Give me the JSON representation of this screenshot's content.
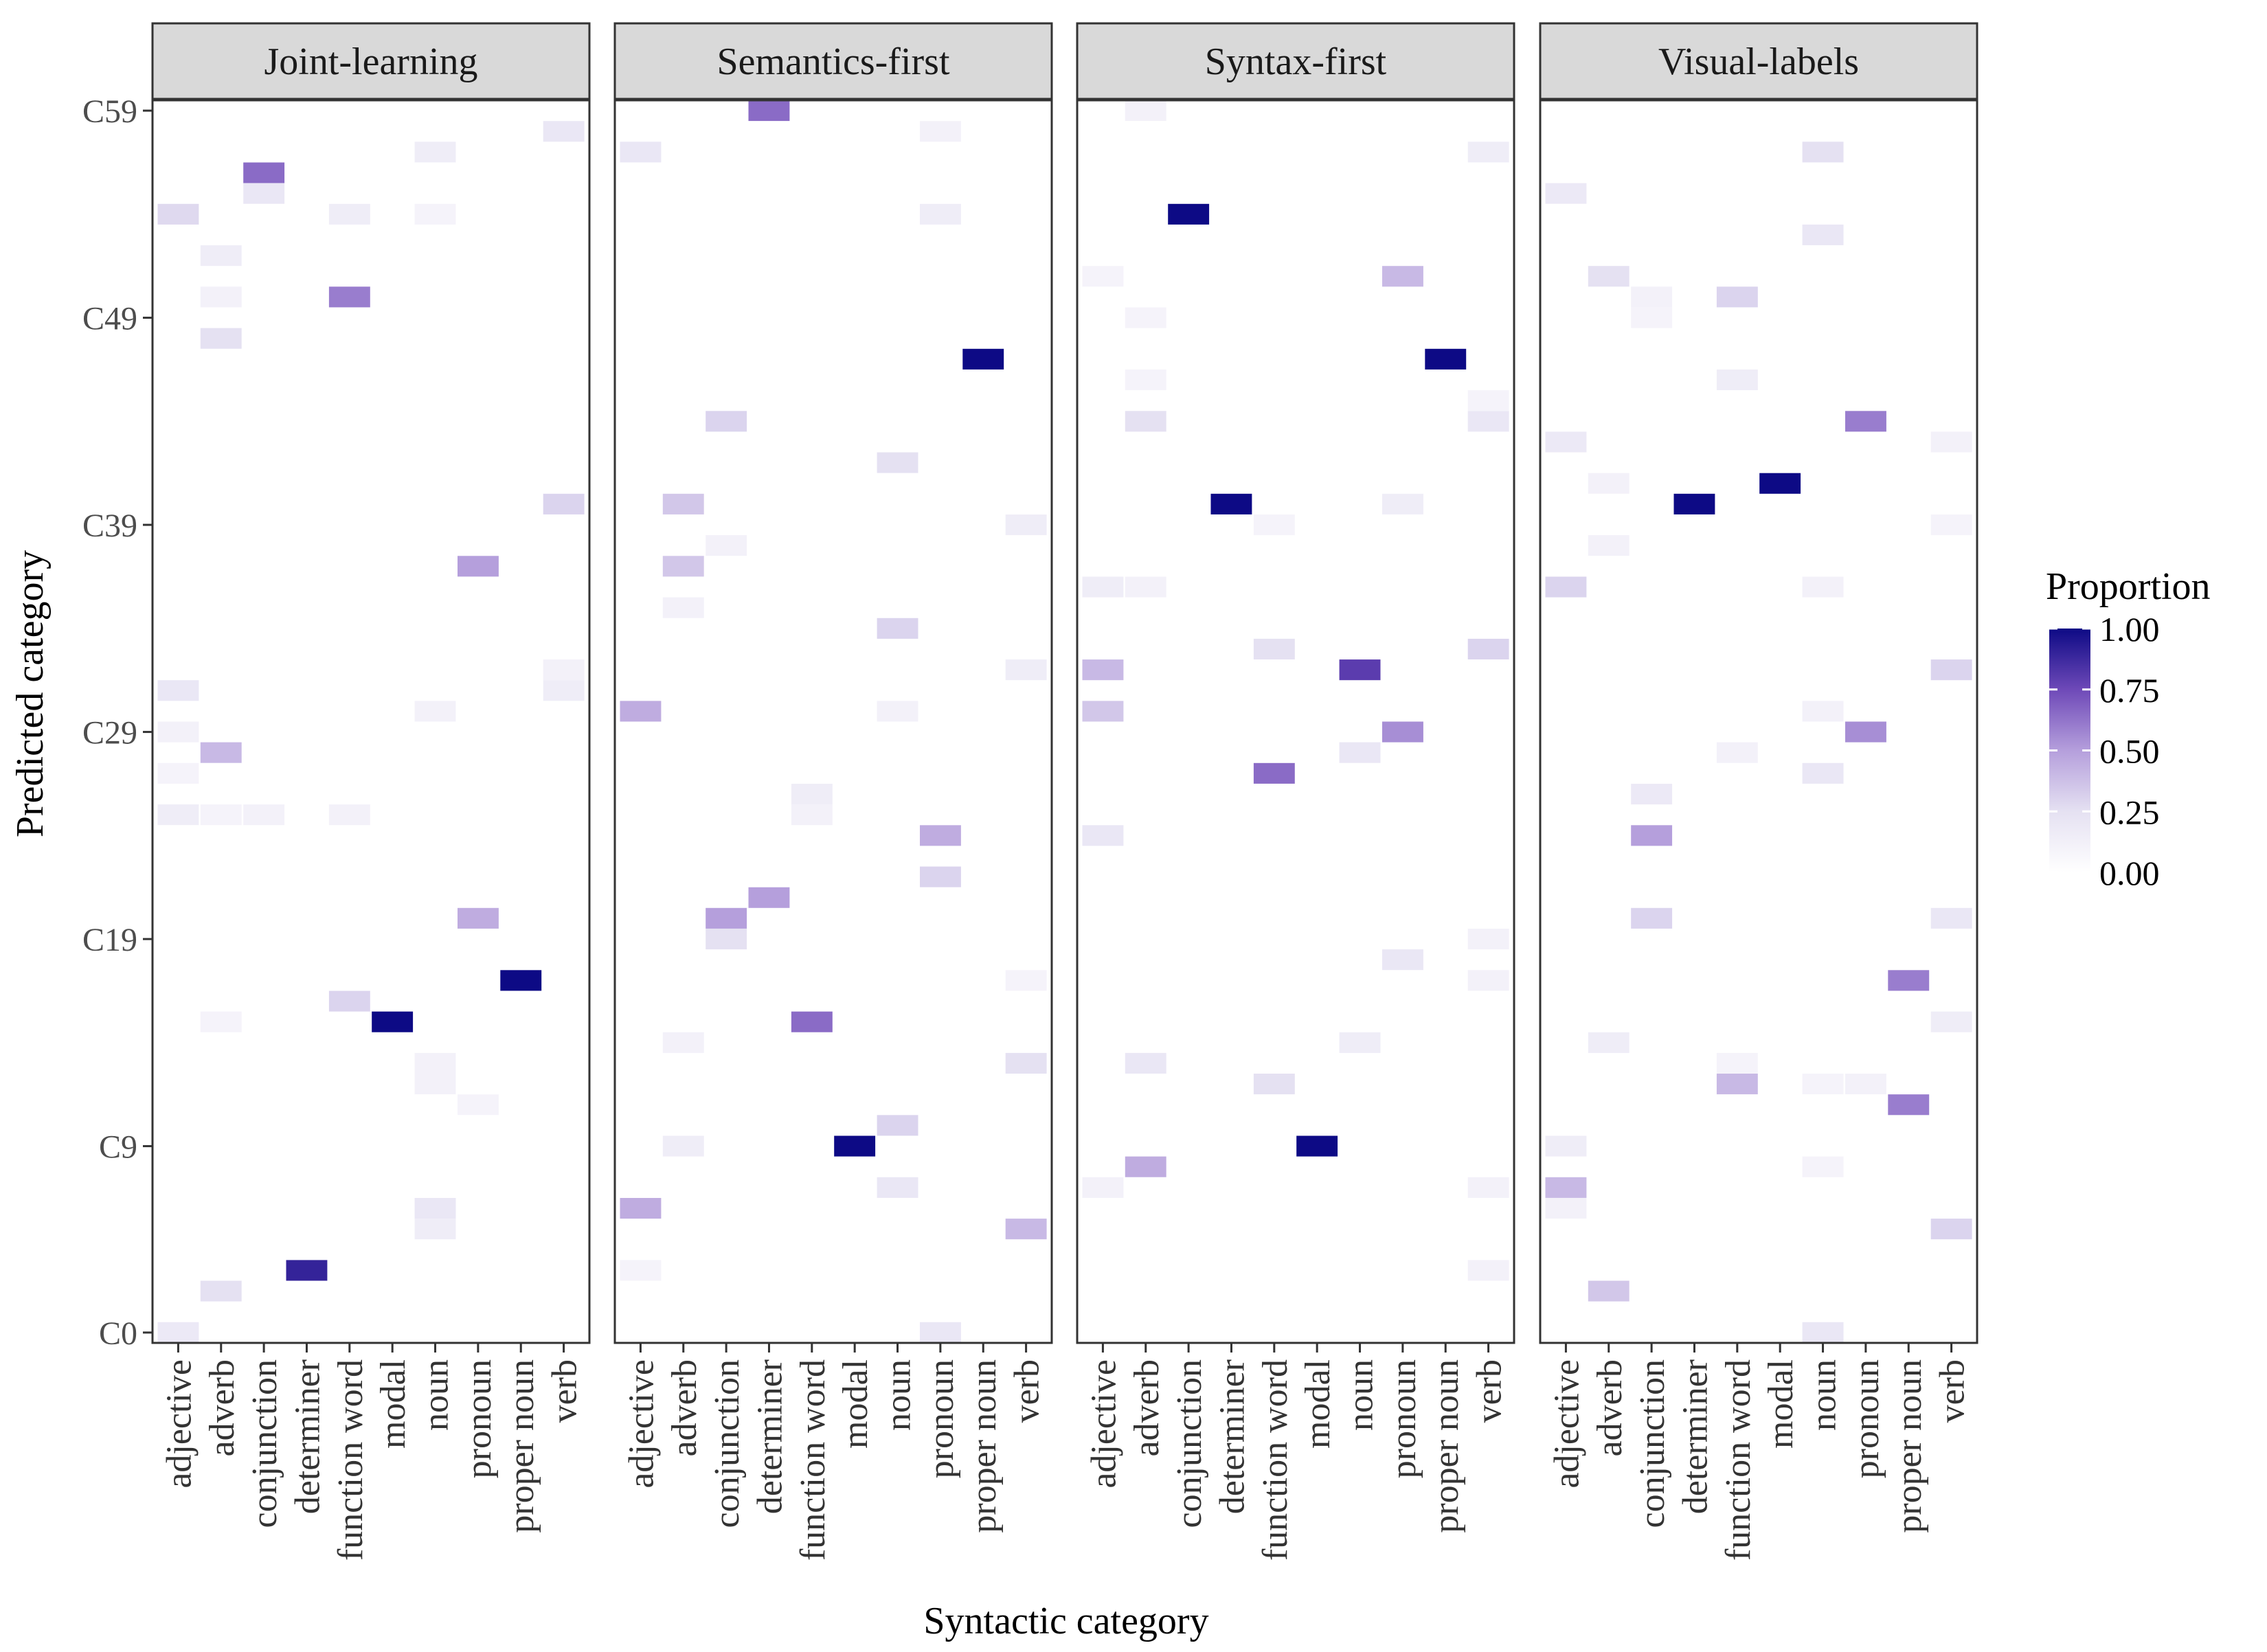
{
  "chart_data": {
    "type": "heatmap",
    "title": "",
    "xlabel": "Syntactic category",
    "ylabel": "Predicted category",
    "x_categories": [
      "adjective",
      "adverb",
      "conjunction",
      "determiner",
      "function word",
      "modal",
      "noun",
      "pronoun",
      "proper noun",
      "verb"
    ],
    "y_range": [
      0,
      59
    ],
    "y_tick_labels": [
      "C0",
      "C9",
      "C19",
      "C29",
      "C39",
      "C49",
      "C59"
    ],
    "y_tick_values": [
      0,
      9,
      19,
      29,
      39,
      49,
      59
    ],
    "legend": {
      "title": "Proportion",
      "placement": "right",
      "ticks": [
        "0.00",
        "0.25",
        "0.50",
        "0.75",
        "1.00"
      ],
      "tick_values": [
        0,
        0.25,
        0.5,
        0.75,
        1
      ],
      "color_low": "#ffffff",
      "color_high": "#0d0a85"
    },
    "grid": false,
    "panels": [
      {
        "name": "Joint-learning",
        "cells": [
          [
            "proper noun",
            17,
            1.0
          ],
          [
            "modal",
            15,
            1.0
          ],
          [
            "determiner",
            3,
            0.9
          ],
          [
            "conjunction",
            56,
            0.65
          ],
          [
            "function word",
            50,
            0.6
          ],
          [
            "pronoun",
            37,
            0.5
          ],
          [
            "pronoun",
            20,
            0.45
          ],
          [
            "adverb",
            28,
            0.4
          ],
          [
            "function word",
            16,
            0.3
          ],
          [
            "verb",
            40,
            0.3
          ],
          [
            "adjective",
            54,
            0.28
          ],
          [
            "adverb",
            48,
            0.25
          ],
          [
            "adverb",
            2,
            0.25
          ],
          [
            "conjunction",
            55,
            0.2
          ],
          [
            "verb",
            58,
            0.2
          ],
          [
            "noun",
            57,
            0.15
          ],
          [
            "adjective",
            31,
            0.2
          ],
          [
            "adjective",
            25,
            0.15
          ],
          [
            "noun",
            6,
            0.2
          ],
          [
            "adjective",
            0,
            0.18
          ],
          [
            "function word",
            54,
            0.15
          ],
          [
            "noun",
            5,
            0.15
          ],
          [
            "verb",
            31,
            0.15
          ],
          [
            "verb",
            32,
            0.12
          ],
          [
            "adjective",
            29,
            0.12
          ],
          [
            "noun",
            30,
            0.12
          ],
          [
            "conjunction",
            25,
            0.12
          ],
          [
            "function word",
            25,
            0.12
          ],
          [
            "noun",
            12,
            0.12
          ],
          [
            "noun",
            13,
            0.12
          ],
          [
            "adverb",
            15,
            0.1
          ],
          [
            "pronoun",
            11,
            0.1
          ],
          [
            "adjective",
            27,
            0.1
          ],
          [
            "noun",
            54,
            0.1
          ],
          [
            "adverb",
            50,
            0.12
          ],
          [
            "adverb",
            25,
            0.1
          ],
          [
            "adverb",
            52,
            0.15
          ]
        ]
      },
      {
        "name": "Semantics-first",
        "cells": [
          [
            "proper noun",
            47,
            1.0
          ],
          [
            "modal",
            9,
            1.0
          ],
          [
            "determiner",
            59,
            0.65
          ],
          [
            "function word",
            15,
            0.65
          ],
          [
            "determiner",
            21,
            0.5
          ],
          [
            "conjunction",
            20,
            0.5
          ],
          [
            "pronoun",
            24,
            0.45
          ],
          [
            "adjective",
            30,
            0.45
          ],
          [
            "adjective",
            6,
            0.45
          ],
          [
            "verb",
            5,
            0.4
          ],
          [
            "adverb",
            40,
            0.35
          ],
          [
            "adverb",
            37,
            0.35
          ],
          [
            "pronoun",
            22,
            0.3
          ],
          [
            "conjunction",
            44,
            0.3
          ],
          [
            "noun",
            34,
            0.3
          ],
          [
            "noun",
            10,
            0.3
          ],
          [
            "conjunction",
            19,
            0.25
          ],
          [
            "noun",
            42,
            0.25
          ],
          [
            "verb",
            13,
            0.25
          ],
          [
            "adjective",
            57,
            0.2
          ],
          [
            "pronoun",
            0,
            0.2
          ],
          [
            "noun",
            7,
            0.2
          ],
          [
            "adverb",
            9,
            0.15
          ],
          [
            "verb",
            39,
            0.15
          ],
          [
            "verb",
            32,
            0.15
          ],
          [
            "conjunction",
            38,
            0.12
          ],
          [
            "function word",
            26,
            0.15
          ],
          [
            "function word",
            25,
            0.12
          ],
          [
            "noun",
            30,
            0.12
          ],
          [
            "adverb",
            14,
            0.12
          ],
          [
            "adverb",
            35,
            0.12
          ],
          [
            "pronoun",
            58,
            0.12
          ],
          [
            "verb",
            17,
            0.1
          ],
          [
            "adjective",
            3,
            0.1
          ],
          [
            "pronoun",
            54,
            0.15
          ]
        ]
      },
      {
        "name": "Syntax-first",
        "cells": [
          [
            "conjunction",
            54,
            1.0
          ],
          [
            "proper noun",
            47,
            1.0
          ],
          [
            "determiner",
            40,
            1.0
          ],
          [
            "modal",
            9,
            1.0
          ],
          [
            "noun",
            32,
            0.8
          ],
          [
            "function word",
            27,
            0.65
          ],
          [
            "pronoun",
            29,
            0.55
          ],
          [
            "pronoun",
            51,
            0.4
          ],
          [
            "adverb",
            8,
            0.45
          ],
          [
            "adjective",
            32,
            0.4
          ],
          [
            "adjective",
            30,
            0.35
          ],
          [
            "verb",
            33,
            0.3
          ],
          [
            "function word",
            33,
            0.25
          ],
          [
            "function word",
            12,
            0.25
          ],
          [
            "noun",
            28,
            0.2
          ],
          [
            "adjective",
            24,
            0.2
          ],
          [
            "adverb",
            44,
            0.25
          ],
          [
            "adverb",
            13,
            0.2
          ],
          [
            "pronoun",
            18,
            0.2
          ],
          [
            "verb",
            44,
            0.2
          ],
          [
            "verb",
            57,
            0.15
          ],
          [
            "noun",
            14,
            0.15
          ],
          [
            "pronoun",
            40,
            0.15
          ],
          [
            "adjective",
            36,
            0.15
          ],
          [
            "adverb",
            59,
            0.12
          ],
          [
            "adverb",
            36,
            0.12
          ],
          [
            "adjective",
            7,
            0.12
          ],
          [
            "verb",
            3,
            0.12
          ],
          [
            "verb",
            19,
            0.12
          ],
          [
            "verb",
            17,
            0.12
          ],
          [
            "verb",
            7,
            0.12
          ],
          [
            "adjective",
            51,
            0.1
          ],
          [
            "adverb",
            46,
            0.1
          ],
          [
            "adverb",
            49,
            0.1
          ],
          [
            "function word",
            39,
            0.1
          ],
          [
            "verb",
            45,
            0.1
          ]
        ]
      },
      {
        "name": "Visual-labels",
        "cells": [
          [
            "modal",
            41,
            1.0
          ],
          [
            "determiner",
            40,
            1.0
          ],
          [
            "pronoun",
            44,
            0.6
          ],
          [
            "pronoun",
            29,
            0.55
          ],
          [
            "proper noun",
            17,
            0.6
          ],
          [
            "proper noun",
            11,
            0.6
          ],
          [
            "conjunction",
            24,
            0.5
          ],
          [
            "function word",
            12,
            0.4
          ],
          [
            "adjective",
            7,
            0.4
          ],
          [
            "adverb",
            2,
            0.35
          ],
          [
            "adjective",
            36,
            0.3
          ],
          [
            "verb",
            32,
            0.3
          ],
          [
            "verb",
            5,
            0.3
          ],
          [
            "noun",
            57,
            0.25
          ],
          [
            "adverb",
            51,
            0.25
          ],
          [
            "function word",
            50,
            0.3
          ],
          [
            "conjunction",
            20,
            0.3
          ],
          [
            "verb",
            20,
            0.2
          ],
          [
            "function word",
            46,
            0.15
          ],
          [
            "conjunction",
            26,
            0.18
          ],
          [
            "noun",
            53,
            0.2
          ],
          [
            "adjective",
            43,
            0.18
          ],
          [
            "adjective",
            55,
            0.18
          ],
          [
            "adjective",
            9,
            0.15
          ],
          [
            "noun",
            27,
            0.2
          ],
          [
            "noun",
            0,
            0.2
          ],
          [
            "verb",
            15,
            0.15
          ],
          [
            "adverb",
            14,
            0.15
          ],
          [
            "adverb",
            41,
            0.12
          ],
          [
            "noun",
            12,
            0.1
          ],
          [
            "pronoun",
            12,
            0.12
          ],
          [
            "noun",
            36,
            0.12
          ],
          [
            "verb",
            43,
            0.12
          ],
          [
            "verb",
            39,
            0.1
          ],
          [
            "function word",
            28,
            0.12
          ],
          [
            "function word",
            13,
            0.1
          ],
          [
            "conjunction",
            50,
            0.12
          ],
          [
            "conjunction",
            49,
            0.1
          ],
          [
            "adverb",
            38,
            0.12
          ],
          [
            "noun",
            30,
            0.12
          ],
          [
            "noun",
            8,
            0.1
          ],
          [
            "adjective",
            6,
            0.12
          ]
        ]
      }
    ]
  }
}
